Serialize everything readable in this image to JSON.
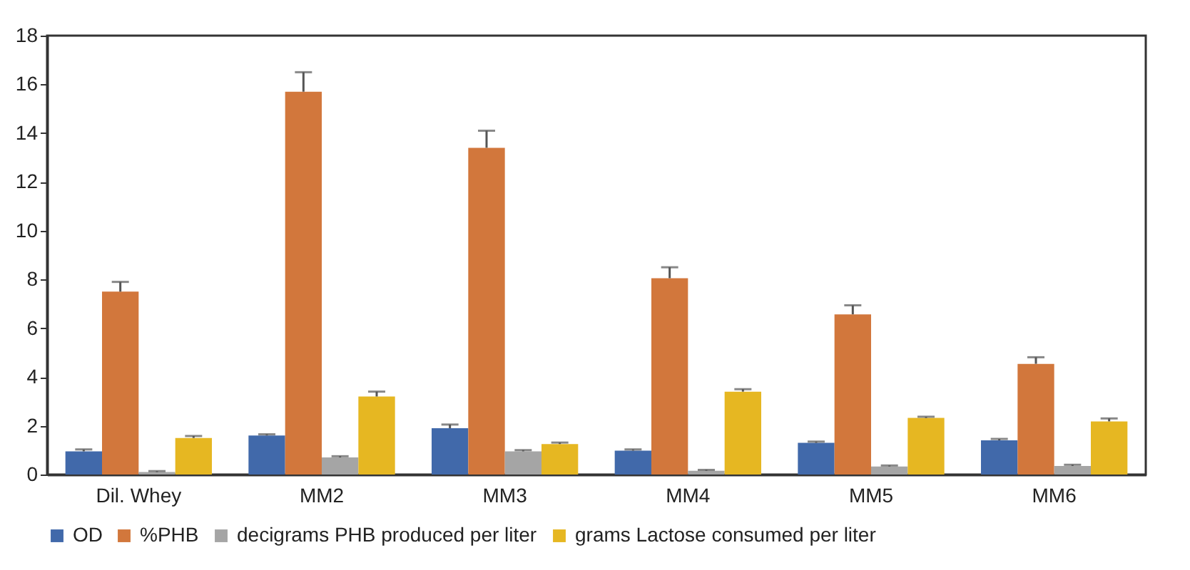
{
  "chart_data": {
    "type": "bar",
    "categories": [
      "Dil. Whey",
      "MM2",
      "MM3",
      "MM4",
      "MM5",
      "MM6"
    ],
    "ylim": [
      0,
      18
    ],
    "yticks": [
      0,
      2,
      4,
      6,
      8,
      10,
      12,
      14,
      16,
      18
    ],
    "grid": false,
    "legend": "bottom",
    "series": [
      {
        "name": "OD",
        "color": "#4169aa",
        "values": [
          0.95,
          1.6,
          1.9,
          0.98,
          1.3,
          1.4
        ],
        "errors": [
          0.08,
          0.05,
          0.15,
          0.05,
          0.05,
          0.06
        ]
      },
      {
        "name": "%PHB",
        "color": "#d2773c",
        "values": [
          7.5,
          15.7,
          13.4,
          8.05,
          6.57,
          4.54
        ],
        "errors": [
          0.4,
          0.8,
          0.7,
          0.45,
          0.37,
          0.27
        ]
      },
      {
        "name": "decigrams PHB produced per liter",
        "color": "#a5a5a5",
        "values": [
          0.1,
          0.7,
          0.95,
          0.15,
          0.33,
          0.35
        ],
        "errors": [
          0.04,
          0.05,
          0.05,
          0.04,
          0.04,
          0.05
        ]
      },
      {
        "name": "grams Lactose consumed per liter",
        "color": "#e6b722",
        "values": [
          1.5,
          3.2,
          1.25,
          3.4,
          2.32,
          2.18
        ],
        "errors": [
          0.08,
          0.2,
          0.06,
          0.1,
          0.05,
          0.12
        ]
      }
    ]
  }
}
